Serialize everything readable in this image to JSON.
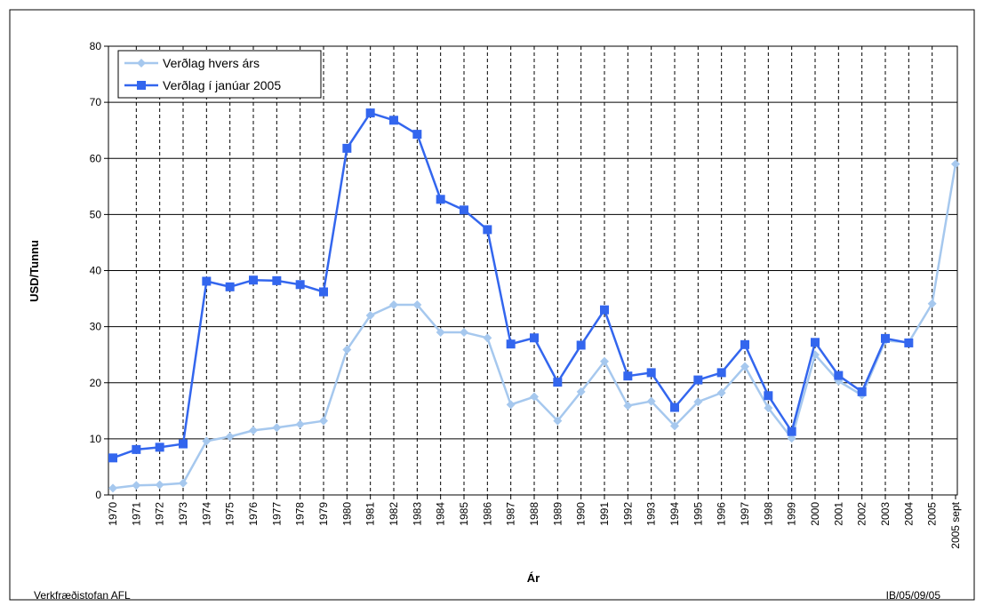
{
  "chart_data": {
    "type": "line",
    "y_label": "USD/Tunnu",
    "x_label": "Ár",
    "categories": [
      "1970",
      "1971",
      "1972",
      "1973",
      "1974",
      "1975",
      "1976",
      "1977",
      "1978",
      "1979",
      "1980",
      "1981",
      "1982",
      "1983",
      "1984",
      "1985",
      "1986",
      "1987",
      "1988",
      "1989",
      "1990",
      "1991",
      "1992",
      "1993",
      "1994",
      "1995",
      "1996",
      "1997",
      "1998",
      "1999",
      "2000",
      "2001",
      "2002",
      "2003",
      "2004",
      "2005",
      "2005 sept"
    ],
    "series": [
      {
        "name": "Verðlag hvers árs",
        "color": "#a6c8ee",
        "marker": "diamond",
        "values": [
          1.2,
          1.7,
          1.8,
          2.1,
          9.6,
          10.4,
          11.5,
          12.0,
          12.6,
          13.2,
          25.9,
          32.0,
          33.9,
          33.9,
          29.0,
          29.0,
          28.0,
          16.1,
          17.5,
          13.2,
          18.4,
          23.8,
          15.9,
          16.7,
          12.3,
          16.6,
          18.2,
          22.9,
          15.5,
          10.1,
          25.0,
          20.3,
          17.8,
          27.5,
          27.2,
          34.1,
          59.0
        ]
      },
      {
        "name": "Verðlag í janúar 2005",
        "color": "#3366ee",
        "marker": "square",
        "values": [
          6.6,
          8.1,
          8.5,
          9.1,
          38.1,
          37.1,
          38.3,
          38.2,
          37.5,
          36.2,
          61.8,
          68.1,
          66.8,
          64.3,
          52.7,
          50.8,
          47.3,
          26.9,
          28.0,
          20.1,
          26.7,
          33.0,
          21.2,
          21.8,
          15.6,
          20.5,
          21.8,
          26.8,
          17.7,
          11.3,
          27.2,
          21.3,
          18.4,
          27.9,
          27.1,
          null,
          null
        ]
      }
    ],
    "ylim": [
      0,
      80
    ],
    "yticks": [
      0,
      10,
      20,
      30,
      40,
      50,
      60,
      70,
      80
    ],
    "grid": true,
    "legend": "top-left"
  },
  "footer": {
    "left": "Verkfræðistofan AFL",
    "right": "IB/05/09/05"
  }
}
